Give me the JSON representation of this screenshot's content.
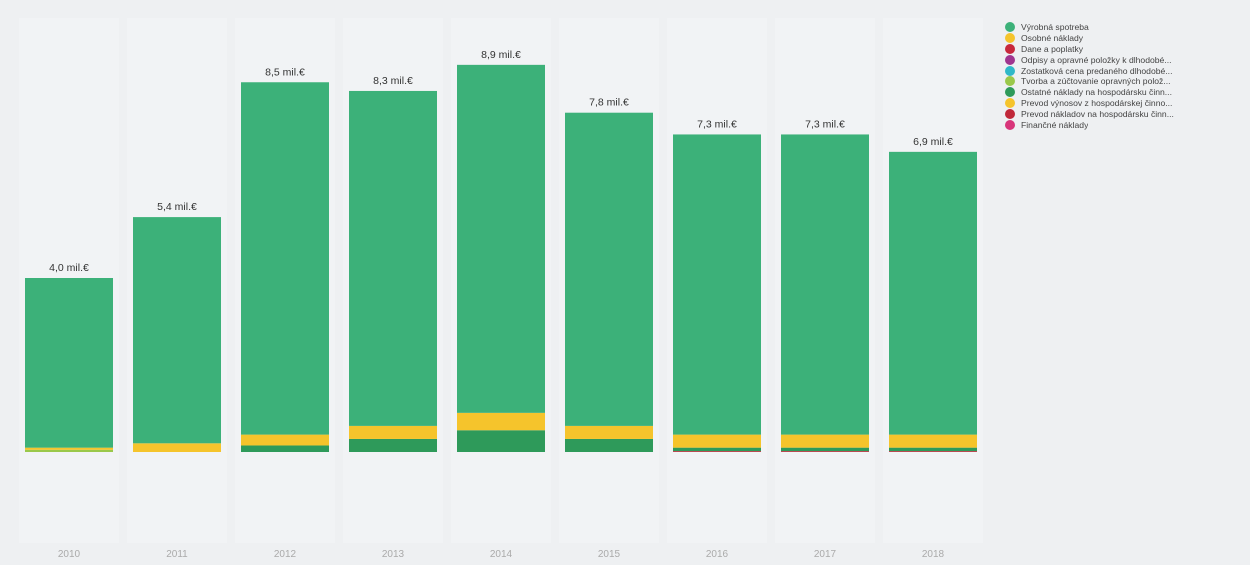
{
  "chart_data": {
    "type": "bar",
    "stacked": true,
    "categories": [
      "2010",
      "2011",
      "2012",
      "2013",
      "2014",
      "2015",
      "2016",
      "2017",
      "2018"
    ],
    "totals": [
      4.0,
      5.4,
      8.5,
      8.3,
      8.9,
      7.8,
      7.3,
      7.3,
      6.9
    ],
    "total_labels": [
      "4,0 mil.€",
      "5,4 mil.€",
      "8,5 mil.€",
      "8,3 mil.€",
      "8,9 mil.€",
      "7,8 mil.€",
      "7,3 mil.€",
      "7,3 mil.€",
      "6,9 mil.€"
    ],
    "ylim": [
      -3,
      11
    ],
    "grid": false,
    "legend_position": "right",
    "series": [
      {
        "name": "Výrobná spotreba",
        "color": "#3cb179",
        "values": [
          3.9,
          5.2,
          8.1,
          7.7,
          8.0,
          7.2,
          6.9,
          6.9,
          6.5
        ]
      },
      {
        "name": "Osobné náklady",
        "color": "#f5c42c",
        "values": [
          0.05,
          0.2,
          0.25,
          0.3,
          0.4,
          0.3,
          0.3,
          0.3,
          0.3
        ]
      },
      {
        "name": "Dane a poplatky",
        "color": "#c8283c",
        "values": [
          0,
          0,
          0,
          0,
          0,
          0,
          0.02,
          0.02,
          0.02
        ]
      },
      {
        "name": "Odpisy a opravné položky k dlhodobé...",
        "color": "#a0358f",
        "values": [
          0,
          0,
          0,
          0,
          0,
          0,
          0,
          0,
          0
        ]
      },
      {
        "name": "Zostatková cena predaného dlhodobé...",
        "color": "#2fb8c8",
        "values": [
          0,
          0,
          0,
          0,
          0,
          0,
          0,
          0,
          0
        ]
      },
      {
        "name": "Tvorba a zúčtovanie opravných polož...",
        "color": "#9ac84a",
        "values": [
          0.05,
          0,
          0,
          0,
          0,
          0,
          0,
          0,
          0
        ]
      },
      {
        "name": "Ostatné náklady na hospodársku činn...",
        "color": "#2e9a5a",
        "values": [
          0,
          0.0,
          0.15,
          0.3,
          0.5,
          0.3,
          0.08,
          0.08,
          0.08
        ]
      },
      {
        "name": "Prevod výnosov z hospodárskej činno...",
        "color": "#f5c42c",
        "values": [
          0,
          0,
          0,
          0,
          0,
          0,
          0,
          0,
          0
        ]
      },
      {
        "name": "Prevod nákladov na hospodársku činn...",
        "color": "#c0283a",
        "values": [
          0,
          0,
          0,
          0,
          0,
          0,
          0,
          0,
          0
        ]
      },
      {
        "name": "Finančné náklady",
        "color": "#d8357a",
        "values": [
          0,
          0,
          0,
          0,
          0,
          0,
          0,
          0,
          0
        ]
      }
    ]
  }
}
